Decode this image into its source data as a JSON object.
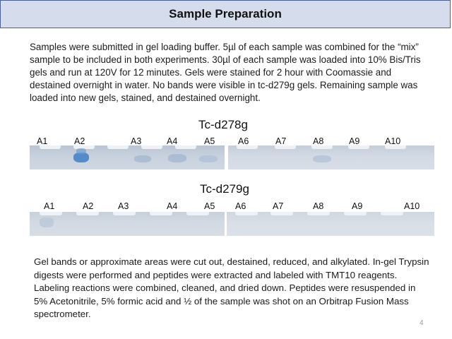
{
  "header": {
    "title": "Sample Preparation"
  },
  "intro_text": "Samples were submitted in gel loading buffer. 5µl of each sample was combined for the “mix” sample to be included in both experiments. 30µl of each sample was loaded into 10% Bis/Tris gels and run at 120V for 12 minutes. Gels were stained for 2 hour with Coomassie and destained overnight in water. No bands were visible in tc-d279g gels. Remaining sample was loaded into new gels, stained, and destained overnight.",
  "gel1": {
    "title": "Tc-d278g",
    "lanes": [
      "A1",
      "A2",
      "A3",
      "A4",
      "A5",
      "A6",
      "A7",
      "A8",
      "A9",
      "A10"
    ]
  },
  "gel2": {
    "title": "Tc-d279g",
    "lanes": [
      "A1",
      "A2",
      "A3",
      "A4",
      "A5",
      "A6",
      "A7",
      "A8",
      "A9",
      "A10"
    ]
  },
  "procedure_text": "Gel bands or approximate areas were cut out, destained, reduced, and alkylated. In-gel Trypsin digests were performed and peptides were extracted and labeled with TMT10 reagents. Labeling reactions were combined, cleaned, and dried down. Peptides were resuspended in 5% Acetonitrile, 5% formic acid and ½ of the sample was shot on an Orbitrap Fusion Mass spectrometer.",
  "footer": {
    "page_number": "4"
  }
}
